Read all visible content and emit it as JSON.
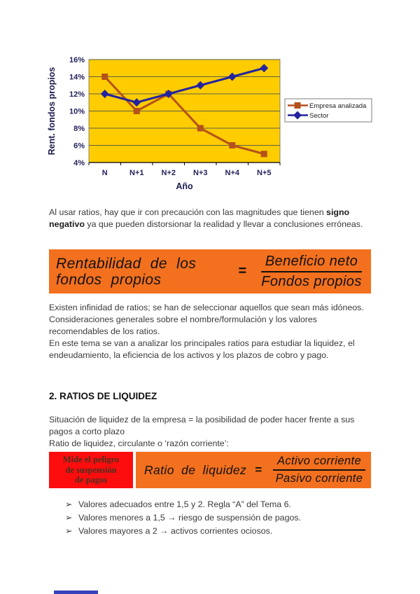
{
  "colors": {
    "banner_orange": "#F3701E",
    "box_red": "#FD0D0D",
    "plot_background": "#FFCC00",
    "grid": "#5f5f46",
    "series_empresa": "#B5521B",
    "series_sector": "#24249E",
    "fragment_blue": "#3742BA"
  },
  "chart_data": {
    "type": "line",
    "x": [
      "N",
      "N+1",
      "N+2",
      "N+3",
      "N+4",
      "N+5"
    ],
    "series": [
      {
        "name": "Empresa analizada",
        "values": [
          14,
          10,
          12,
          8,
          6,
          5
        ],
        "color": "#B5521B",
        "marker": "square"
      },
      {
        "name": "Sector",
        "values": [
          12,
          11,
          12,
          13,
          14,
          15
        ],
        "color": "#24249E",
        "marker": "diamond"
      }
    ],
    "title": "",
    "xlabel": "Año",
    "ylabel": "Rent. fondos propios",
    "ylim": [
      4,
      16
    ],
    "ytick_step": 2,
    "ytick_suffix": "%",
    "grid": true,
    "legend_position": "right",
    "plot_background": "#FFCC00"
  },
  "document": {
    "p1": {
      "pre": "Al usar ratios, hay que ir con precaución con las magnitudes que tienen ",
      "bold": "signo negativo",
      "post": " ya que pueden distorsionar la realidad y llevar a conclusiones erróneas."
    },
    "formula1": {
      "lhs_line1": "Rentabilidad de los",
      "lhs_line2": "fondos propios",
      "equals": "=",
      "numerator": "Beneficio neto",
      "denominator": "Fondos propios"
    },
    "p2_lines": [
      "Existen infinidad de ratios; se han de seleccionar aquellos que sean más idóneos.",
      "Consideraciones generales sobre el nombre/formulación y los valores recomendables de los ratios.",
      "En este tema se van a analizar los principales ratios para estudiar la liquidez, el endeudamiento, la eficiencia de los activos y los plazos de cobro y pago."
    ],
    "heading2": "2. RATIOS DE LIQUIDEZ",
    "p3_lines": [
      "Situación de liquidez de la empresa = la posibilidad de poder hacer frente a sus pagos a corto plazo",
      "Ratio de liquidez, circulante o ‘razón corriente’:"
    ],
    "red_box_lines": [
      "Mide el peligro",
      "de suspensión",
      "de pagos"
    ],
    "formula2": {
      "lhs": "Ratio de liquidez",
      "equals": "=",
      "numerator": "Activo corriente",
      "denominator": "Pasivo corriente"
    },
    "bullets": [
      {
        "marker": "➢",
        "text": "Valores adecuados entre 1,5 y 2. Regla “A” del Tema 6."
      },
      {
        "marker": "➢",
        "text": "Valores menores a 1,5 → riesgo de suspensión de pagos."
      },
      {
        "marker": "➢",
        "text": "Valores mayores a 2 → activos corrientes ociosos."
      }
    ]
  }
}
